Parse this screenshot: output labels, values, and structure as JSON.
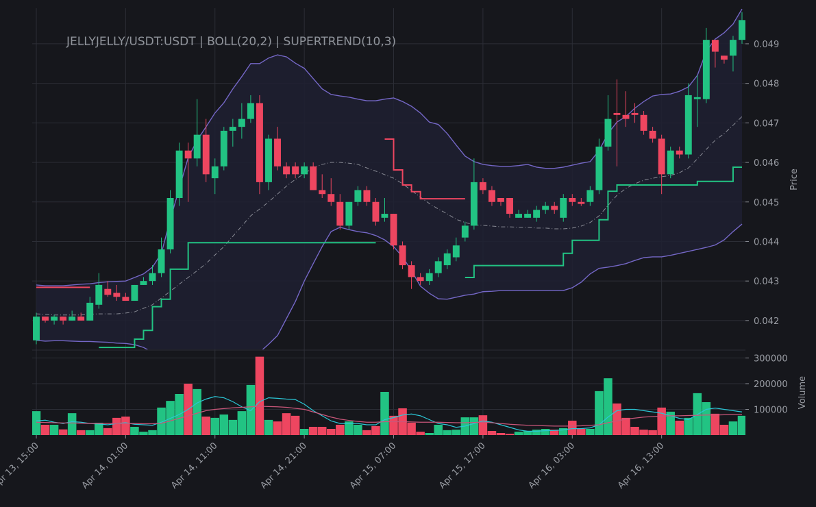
{
  "chart_data": {
    "type": "candlestick",
    "title": "JELLYJELLY/USDT:USDT | BOLL(20,2) | SUPERTREND(10,3)",
    "y_label": "Price",
    "volume_label": "Volume",
    "categories": [
      "Apr 13, 15:00",
      null,
      null,
      null,
      null,
      null,
      null,
      null,
      null,
      null,
      "Apr 14, 01:00",
      null,
      null,
      null,
      null,
      null,
      null,
      null,
      null,
      null,
      "Apr 14, 11:00",
      null,
      null,
      null,
      null,
      null,
      null,
      null,
      null,
      null,
      "Apr 14, 21:00",
      null,
      null,
      null,
      null,
      null,
      null,
      null,
      null,
      null,
      "Apr 15, 07:00",
      null,
      null,
      null,
      null,
      null,
      null,
      null,
      null,
      null,
      "Apr 15, 17:00",
      null,
      null,
      null,
      null,
      null,
      null,
      null,
      null,
      null,
      "Apr 16, 03:00",
      null,
      null,
      null,
      null,
      null,
      null,
      null,
      null,
      null,
      "Apr 16, 13:00",
      null,
      null,
      null,
      null,
      null,
      null,
      null,
      null,
      null
    ],
    "open": [
      0.0415,
      0.0421,
      0.042,
      0.0421,
      0.042,
      0.0421,
      0.042,
      0.0424,
      0.0428,
      0.0427,
      0.0426,
      0.0425,
      0.0429,
      0.043,
      0.0432,
      0.0438,
      0.0451,
      0.0463,
      0.0461,
      0.0467,
      0.0456,
      0.0459,
      0.0468,
      0.0469,
      0.0471,
      0.0475,
      0.0455,
      0.0466,
      0.0459,
      0.0459,
      0.0457,
      0.0459,
      0.0453,
      0.0452,
      0.045,
      0.0444,
      0.045,
      0.0453,
      0.045,
      0.0446,
      0.0447,
      0.0439,
      0.0434,
      0.0431,
      0.043,
      0.0432,
      0.0434,
      0.0436,
      0.0441,
      0.0444,
      0.0455,
      0.0453,
      0.0451,
      0.0451,
      0.0446,
      0.0446,
      0.0446,
      0.0448,
      0.0449,
      0.0446,
      0.0451,
      0.045,
      0.045,
      0.0453,
      0.0464,
      0.04725,
      0.0472,
      0.04725,
      0.0472,
      0.0468,
      0.0466,
      0.0457,
      0.0463,
      0.0462,
      0.0476,
      0.0476,
      0.0491,
      0.0487,
      0.0487,
      0.0491
    ],
    "high": [
      0.0422,
      0.0421,
      0.04215,
      0.0421,
      0.04225,
      0.0422,
      0.0426,
      0.0432,
      0.043,
      0.0429,
      0.0427,
      0.0429,
      0.0431,
      0.0434,
      0.0441,
      0.0453,
      0.0465,
      0.0465,
      0.0476,
      0.0471,
      0.0461,
      0.0469,
      0.0471,
      0.0475,
      0.0477,
      0.0477,
      0.0467,
      0.0469,
      0.046,
      0.046,
      0.046,
      0.046,
      0.0457,
      0.0456,
      0.0452,
      0.045,
      0.0454,
      0.0454,
      0.0451,
      0.0451,
      0.0447,
      0.044,
      0.0435,
      0.0432,
      0.0433,
      0.0436,
      0.0438,
      0.0441,
      0.0445,
      0.0461,
      0.0456,
      0.0454,
      0.0451,
      0.0451,
      0.0448,
      0.0448,
      0.0449,
      0.045,
      0.045,
      0.0452,
      0.0452,
      0.0451,
      0.0454,
      0.0466,
      0.0477,
      0.0481,
      0.0478,
      0.0475,
      0.0473,
      0.0469,
      0.0467,
      0.0464,
      0.0464,
      0.048,
      0.0482,
      0.0494,
      0.0491,
      0.0487,
      0.0492,
      0.0498
    ],
    "low": [
      0.0414,
      0.04195,
      0.0419,
      0.0419,
      0.042,
      0.042,
      0.042,
      0.0423,
      0.0426,
      0.0425,
      0.0425,
      0.0425,
      0.0429,
      0.0429,
      0.0431,
      0.0437,
      0.0449,
      0.045,
      0.0459,
      0.0455,
      0.0452,
      0.0458,
      0.0464,
      0.0466,
      0.047,
      0.0452,
      0.0453,
      0.0458,
      0.0456,
      0.0456,
      0.0456,
      0.0453,
      0.0451,
      0.0449,
      0.0443,
      0.0443,
      0.0449,
      0.0449,
      0.0444,
      0.0445,
      0.0438,
      0.0433,
      0.0428,
      0.0429,
      0.0429,
      0.0431,
      0.0433,
      0.0435,
      0.044,
      0.0443,
      0.0452,
      0.0449,
      0.0449,
      0.0446,
      0.0446,
      0.0446,
      0.0445,
      0.0447,
      0.0447,
      0.0445,
      0.0449,
      0.0449,
      0.0449,
      0.0452,
      0.0463,
      0.0459,
      0.0469,
      0.047,
      0.0467,
      0.0465,
      0.0452,
      0.0456,
      0.0461,
      0.0461,
      0.0469,
      0.0475,
      0.0484,
      0.0485,
      0.0483,
      0.049
    ],
    "close": [
      0.0421,
      0.042,
      0.0421,
      0.042,
      0.0421,
      0.042,
      0.04245,
      0.0429,
      0.04265,
      0.0426,
      0.0425,
      0.0429,
      0.043,
      0.0432,
      0.0438,
      0.0451,
      0.0463,
      0.0461,
      0.0467,
      0.0457,
      0.0459,
      0.0468,
      0.0469,
      0.0471,
      0.0475,
      0.0455,
      0.0466,
      0.0459,
      0.0457,
      0.0457,
      0.0459,
      0.0453,
      0.0452,
      0.045,
      0.0444,
      0.045,
      0.0453,
      0.045,
      0.0445,
      0.0447,
      0.0439,
      0.0434,
      0.0431,
      0.043,
      0.0432,
      0.0435,
      0.0437,
      0.0439,
      0.0444,
      0.0455,
      0.0453,
      0.045,
      0.045,
      0.0447,
      0.0447,
      0.0447,
      0.0448,
      0.0449,
      0.0448,
      0.0451,
      0.045,
      0.04495,
      0.0453,
      0.0464,
      0.0471,
      0.0472,
      0.0471,
      0.0472,
      0.0468,
      0.0466,
      0.0457,
      0.0463,
      0.0462,
      0.0477,
      0.04765,
      0.0491,
      0.0488,
      0.0486,
      0.0491,
      0.0496
    ],
    "volume": [
      93000,
      40000,
      40000,
      22000,
      85000,
      19000,
      19000,
      48000,
      27000,
      67000,
      72000,
      32000,
      13000,
      19000,
      107000,
      133000,
      160000,
      200000,
      179000,
      72000,
      67000,
      80000,
      59000,
      93000,
      195000,
      305000,
      59000,
      53000,
      85000,
      75000,
      24000,
      32000,
      32000,
      24000,
      40000,
      53000,
      40000,
      19000,
      35000,
      168000,
      75000,
      104000,
      48000,
      13000,
      8000,
      40000,
      19000,
      21000,
      69000,
      69000,
      77000,
      16000,
      8000,
      5000,
      13000,
      16000,
      21000,
      24000,
      21000,
      27000,
      56000,
      24000,
      24000,
      171000,
      221000,
      123000,
      67000,
      32000,
      21000,
      19000,
      107000,
      91000,
      56000,
      67000,
      163000,
      128000,
      83000,
      40000,
      53000,
      75000
    ],
    "up_color": "#22c383",
    "down_color": "#ee4660",
    "ylim": [
      0.04127,
      0.0499
    ],
    "yticks": [
      0.042,
      0.043,
      0.044,
      0.045,
      0.046,
      0.047,
      0.048,
      0.049
    ],
    "volume_ylim": [
      0,
      328000
    ],
    "volume_yticks": [
      100000,
      200000,
      300000
    ],
    "grid": true,
    "bollinger": {
      "color": "#7467c6",
      "middle_color": "#8a8c96",
      "fill": "#1f2031",
      "upper": [
        0.0429,
        0.04288,
        0.04288,
        0.04288,
        0.0429,
        0.04292,
        0.04293,
        0.04296,
        0.04298,
        0.04299,
        0.043,
        0.04309,
        0.04318,
        0.04335,
        0.0437,
        0.04456,
        0.04534,
        0.04612,
        0.04656,
        0.0469,
        0.04725,
        0.04751,
        0.04786,
        0.04817,
        0.0485,
        0.0485,
        0.04864,
        0.04872,
        0.04867,
        0.04851,
        0.04838,
        0.04812,
        0.04786,
        0.04772,
        0.04768,
        0.04765,
        0.0476,
        0.04756,
        0.04756,
        0.0476,
        0.04763,
        0.04754,
        0.04742,
        0.04725,
        0.04702,
        0.04696,
        0.04673,
        0.04644,
        0.04616,
        0.04602,
        0.04595,
        0.04592,
        0.0459,
        0.0459,
        0.04592,
        0.04595,
        0.04588,
        0.04585,
        0.04585,
        0.04588,
        0.04593,
        0.04598,
        0.04602,
        0.0463,
        0.04673,
        0.04702,
        0.04716,
        0.04737,
        0.04754,
        0.04768,
        0.04772,
        0.04773,
        0.0478,
        0.04791,
        0.0482,
        0.04881,
        0.04912,
        0.04928,
        0.0495,
        0.04988
      ],
      "middle": [
        0.04217,
        0.04216,
        0.04214,
        0.04214,
        0.04214,
        0.04214,
        0.04216,
        0.04217,
        0.04217,
        0.04217,
        0.04219,
        0.04222,
        0.04231,
        0.0424,
        0.04257,
        0.04274,
        0.04292,
        0.04309,
        0.04326,
        0.04344,
        0.04366,
        0.04387,
        0.04413,
        0.04439,
        0.04465,
        0.04482,
        0.045,
        0.0452,
        0.0454,
        0.04557,
        0.04572,
        0.04586,
        0.04595,
        0.046,
        0.046,
        0.04598,
        0.04595,
        0.04586,
        0.04578,
        0.04569,
        0.0456,
        0.04546,
        0.04529,
        0.04512,
        0.04496,
        0.04482,
        0.0447,
        0.04456,
        0.04448,
        0.04442,
        0.04441,
        0.04439,
        0.04437,
        0.04437,
        0.04436,
        0.04436,
        0.04434,
        0.04434,
        0.04432,
        0.04432,
        0.04434,
        0.04439,
        0.04448,
        0.04465,
        0.04491,
        0.04517,
        0.04534,
        0.04546,
        0.04555,
        0.0456,
        0.04564,
        0.04567,
        0.04574,
        0.04586,
        0.04609,
        0.04633,
        0.04656,
        0.04673,
        0.04694,
        0.04716
      ],
      "lower": [
        0.0415,
        0.04148,
        0.04149,
        0.04149,
        0.04148,
        0.04147,
        0.04147,
        0.04146,
        0.04145,
        0.04143,
        0.04142,
        0.04139,
        0.04132,
        0.0412,
        0.041,
        0.0408,
        0.0406,
        0.0404,
        0.0402,
        0.0401,
        0.04,
        0.0401,
        0.0403,
        0.0406,
        0.0409,
        0.0412,
        0.0414,
        0.04162,
        0.04205,
        0.04248,
        0.043,
        0.04344,
        0.04387,
        0.04425,
        0.04436,
        0.0443,
        0.04425,
        0.04422,
        0.04415,
        0.04404,
        0.04387,
        0.04361,
        0.04326,
        0.04287,
        0.04269,
        0.04255,
        0.04254,
        0.04259,
        0.04264,
        0.04267,
        0.04273,
        0.04274,
        0.04276,
        0.04276,
        0.04276,
        0.04276,
        0.04276,
        0.04276,
        0.04276,
        0.04276,
        0.04283,
        0.04297,
        0.04318,
        0.04332,
        0.04335,
        0.04339,
        0.04344,
        0.04352,
        0.04359,
        0.04361,
        0.04361,
        0.04365,
        0.0437,
        0.04375,
        0.0438,
        0.04385,
        0.04391,
        0.04404,
        0.04425,
        0.04444
      ]
    },
    "supertrend": {
      "up_color": "#22c383",
      "down_color": "#ee4660",
      "up": [
        null,
        null,
        null,
        null,
        null,
        null,
        null,
        0.04132,
        0.04132,
        0.04132,
        0.04132,
        0.04153,
        0.04175,
        0.04235,
        0.04254,
        0.0433,
        0.0433,
        0.04397,
        0.04397,
        0.04397,
        0.04397,
        0.04397,
        0.04397,
        0.04397,
        0.04397,
        0.04397,
        0.04397,
        0.04397,
        0.04397,
        0.04397,
        0.04397,
        0.04397,
        0.04397,
        0.04397,
        0.04397,
        0.04397,
        0.04397,
        0.04397,
        0.04397,
        null,
        null,
        null,
        null,
        null,
        null,
        null,
        null,
        null,
        0.04309,
        0.04339,
        0.04339,
        0.04339,
        0.04339,
        0.04339,
        0.04339,
        0.04339,
        0.04339,
        0.04339,
        0.04339,
        0.0437,
        0.04403,
        0.04403,
        0.04403,
        0.04455,
        0.04527,
        0.04543,
        0.04543,
        0.04543,
        0.04543,
        0.04543,
        0.04543,
        0.04543,
        0.04543,
        0.04543,
        0.04552,
        0.04552,
        0.04552,
        0.04552,
        0.04588,
        0.04588
      ],
      "down": [
        0.04284,
        0.04284,
        0.04284,
        0.04284,
        0.04284,
        0.04284,
        0.04284,
        null,
        null,
        null,
        null,
        null,
        null,
        null,
        null,
        null,
        null,
        null,
        null,
        null,
        null,
        null,
        null,
        null,
        null,
        null,
        null,
        null,
        null,
        null,
        null,
        null,
        null,
        null,
        null,
        null,
        null,
        null,
        null,
        0.04659,
        0.04581,
        0.04543,
        0.04526,
        0.04508,
        0.04508,
        0.04508,
        0.04508,
        0.04508,
        0.04508,
        null,
        null,
        null,
        null,
        null,
        null,
        null,
        null,
        null,
        null,
        null,
        null,
        null,
        null,
        null,
        null,
        null,
        null,
        null,
        null,
        null,
        null,
        null,
        null,
        null,
        null,
        null,
        null,
        null,
        null,
        null
      ]
    },
    "volume_ma": [
      {
        "color": "#2bc7d6",
        "values": [
          55000,
          58000,
          50000,
          45000,
          52000,
          50000,
          45000,
          43000,
          40000,
          45000,
          48000,
          42000,
          40000,
          38000,
          50000,
          65000,
          80000,
          100000,
          125000,
          140000,
          150000,
          145000,
          130000,
          110000,
          95000,
          130000,
          145000,
          143000,
          140000,
          138000,
          120000,
          95000,
          75000,
          55000,
          45000,
          45000,
          45000,
          40000,
          40000,
          60000,
          68000,
          78000,
          82000,
          75000,
          60000,
          45000,
          40000,
          30000,
          35000,
          45000,
          55000,
          50000,
          40000,
          30000,
          20000,
          15000,
          15000,
          17000,
          18000,
          20000,
          25000,
          25000,
          28000,
          40000,
          70000,
          95000,
          100000,
          100000,
          95000,
          90000,
          85000,
          75000,
          65000,
          60000,
          80000,
          100000,
          105000,
          100000,
          95000,
          90000
        ]
      },
      {
        "color": "#c9577a",
        "values": [
          50000,
          49000,
          48000,
          47000,
          47000,
          46000,
          45000,
          45000,
          45000,
          45000,
          45000,
          45000,
          44000,
          44000,
          46000,
          55000,
          65000,
          75000,
          85000,
          95000,
          100000,
          103000,
          106000,
          108000,
          110000,
          112000,
          111000,
          110000,
          108000,
          104000,
          100000,
          90000,
          80000,
          70000,
          62000,
          57000,
          53000,
          50000,
          50000,
          52000,
          52000,
          52000,
          51000,
          50000,
          50000,
          50000,
          49000,
          48000,
          48000,
          49000,
          50000,
          48000,
          45000,
          42000,
          40000,
          38000,
          37000,
          36000,
          35000,
          35000,
          35000,
          36000,
          38000,
          40000,
          48000,
          55000,
          62000,
          66000,
          70000,
          72000,
          74000,
          75000,
          75000,
          76000,
          77000,
          78000,
          78000,
          79000,
          80000,
          80000
        ]
      }
    ]
  }
}
